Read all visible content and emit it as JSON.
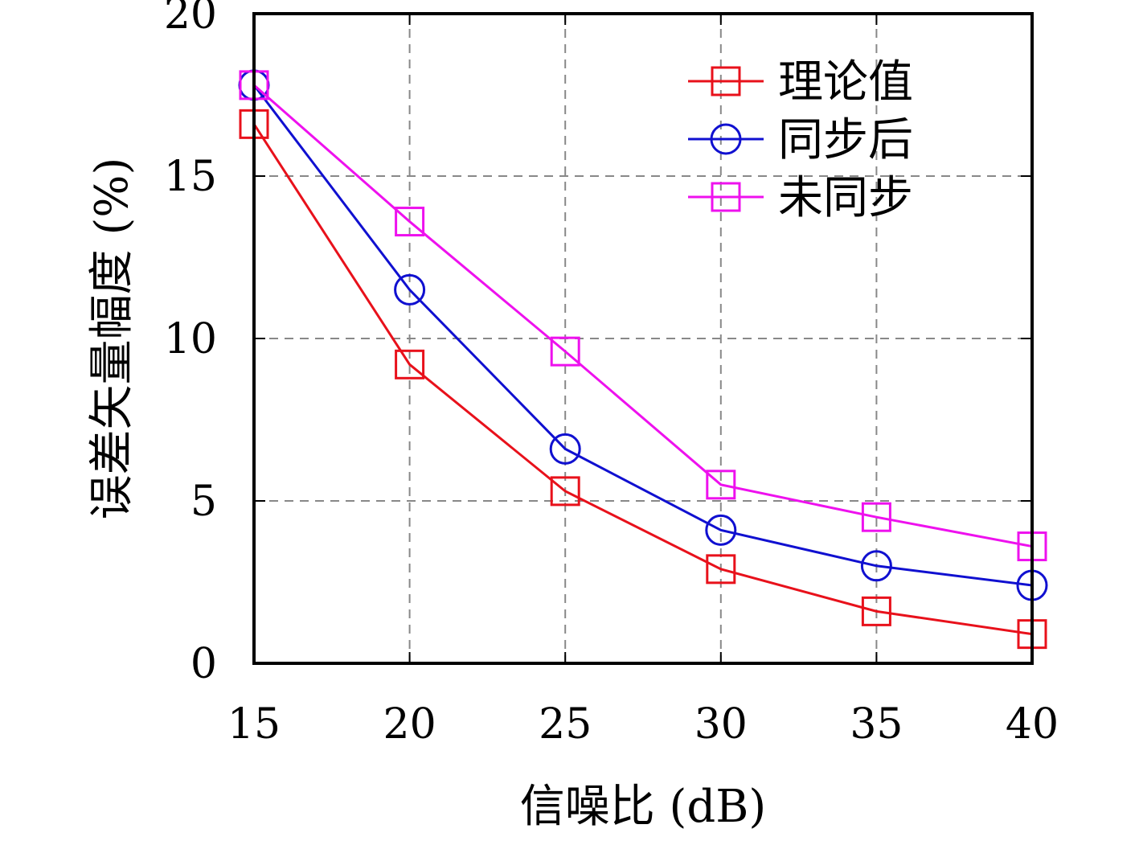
{
  "chart_data": {
    "type": "line",
    "xlabel": "信噪比 (dB)",
    "ylabel": "误差矢量幅度 (%)",
    "x": [
      15,
      20,
      25,
      30,
      35,
      40
    ],
    "xlim": [
      15,
      40
    ],
    "ylim": [
      0,
      20
    ],
    "xticks": [
      "15",
      "20",
      "25",
      "30",
      "35",
      "40"
    ],
    "yticks": [
      "0",
      "5",
      "10",
      "15",
      "20"
    ],
    "grid": true,
    "legend_position": "top-right",
    "series": [
      {
        "name": "理论值",
        "values": [
          16.6,
          9.2,
          5.3,
          2.9,
          1.6,
          0.9
        ],
        "color": "#e8111b",
        "marker": "square"
      },
      {
        "name": "同步后",
        "values": [
          17.8,
          11.5,
          6.6,
          4.1,
          3.0,
          2.4
        ],
        "color": "#1010d0",
        "marker": "circle"
      },
      {
        "name": "未同步",
        "values": [
          17.8,
          13.6,
          9.6,
          5.5,
          4.5,
          3.6
        ],
        "color": "#ee11ee",
        "marker": "square"
      }
    ]
  }
}
